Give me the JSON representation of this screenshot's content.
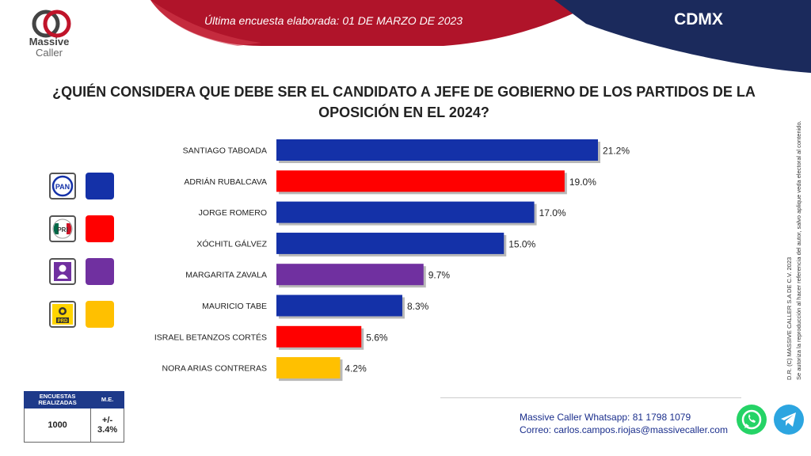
{
  "header": {
    "survey_date_text": "Última encuesta elaborada: 01 DE MARZO DE 2023",
    "region": "CDMX",
    "brand_line1": "Massive",
    "brand_line2": "Caller",
    "colors": {
      "red": "#b0142a",
      "navy": "#1b2a5c"
    }
  },
  "question": {
    "line1": "¿QUIÉN CONSIDERA QUE DEBE SER EL CANDIDATO A JEFE DE GOBIERNO DE LOS PARTIDOS DE  LA",
    "line2": "OPOSICIÓN EN EL 2024?"
  },
  "chart_data": {
    "type": "bar",
    "orientation": "horizontal",
    "categories": [
      "SANTIAGO TABOADA",
      "ADRIÁN RUBALCAVA",
      "JORGE ROMERO",
      "XÓCHITL GÁLVEZ",
      "MARGARITA ZAVALA",
      "MAURICIO TABE",
      "ISRAEL BETANZOS CORTÉS",
      "NORA ARIAS CONTRERAS"
    ],
    "values": [
      21.2,
      19.0,
      17.0,
      15.0,
      9.7,
      8.3,
      5.6,
      4.2
    ],
    "labels": [
      "21.2%",
      "19.0%",
      "17.0%",
      "15.0%",
      "9.7%",
      "8.3%",
      "5.6%",
      "4.2%"
    ],
    "colors": [
      "#1431a8",
      "#ff0000",
      "#1431a8",
      "#1431a8",
      "#7030a0",
      "#1431a8",
      "#ff0000",
      "#ffc000"
    ],
    "xlim": [
      0,
      21.2
    ],
    "grid": false
  },
  "legend": [
    {
      "party": "PAN",
      "color": "#1431a8"
    },
    {
      "party": "PRI",
      "color": "#ff0000"
    },
    {
      "party": "independent",
      "color": "#7030a0"
    },
    {
      "party": "PRD",
      "color": "#ffc000"
    }
  ],
  "summary_table": {
    "h1": "ENCUESTAS REALIZADAS",
    "h2": "M.E.",
    "v1": "1000",
    "v2": "+/- 3.4%"
  },
  "contact": {
    "whatsapp_label": "Massive Caller Whatsapp:",
    "whatsapp_number": "81 1798 1079",
    "email_label": "Correo:",
    "email": "carlos.campos.riojas@massivecaller.com"
  },
  "copyright": {
    "line1": "D.R. (C) MASSIVE CALLER S.A DE C.V. 2023",
    "line2": "Se autoriza la reproducción al hacer referencia del autor, salvo aplique veda electoral al contenido."
  }
}
